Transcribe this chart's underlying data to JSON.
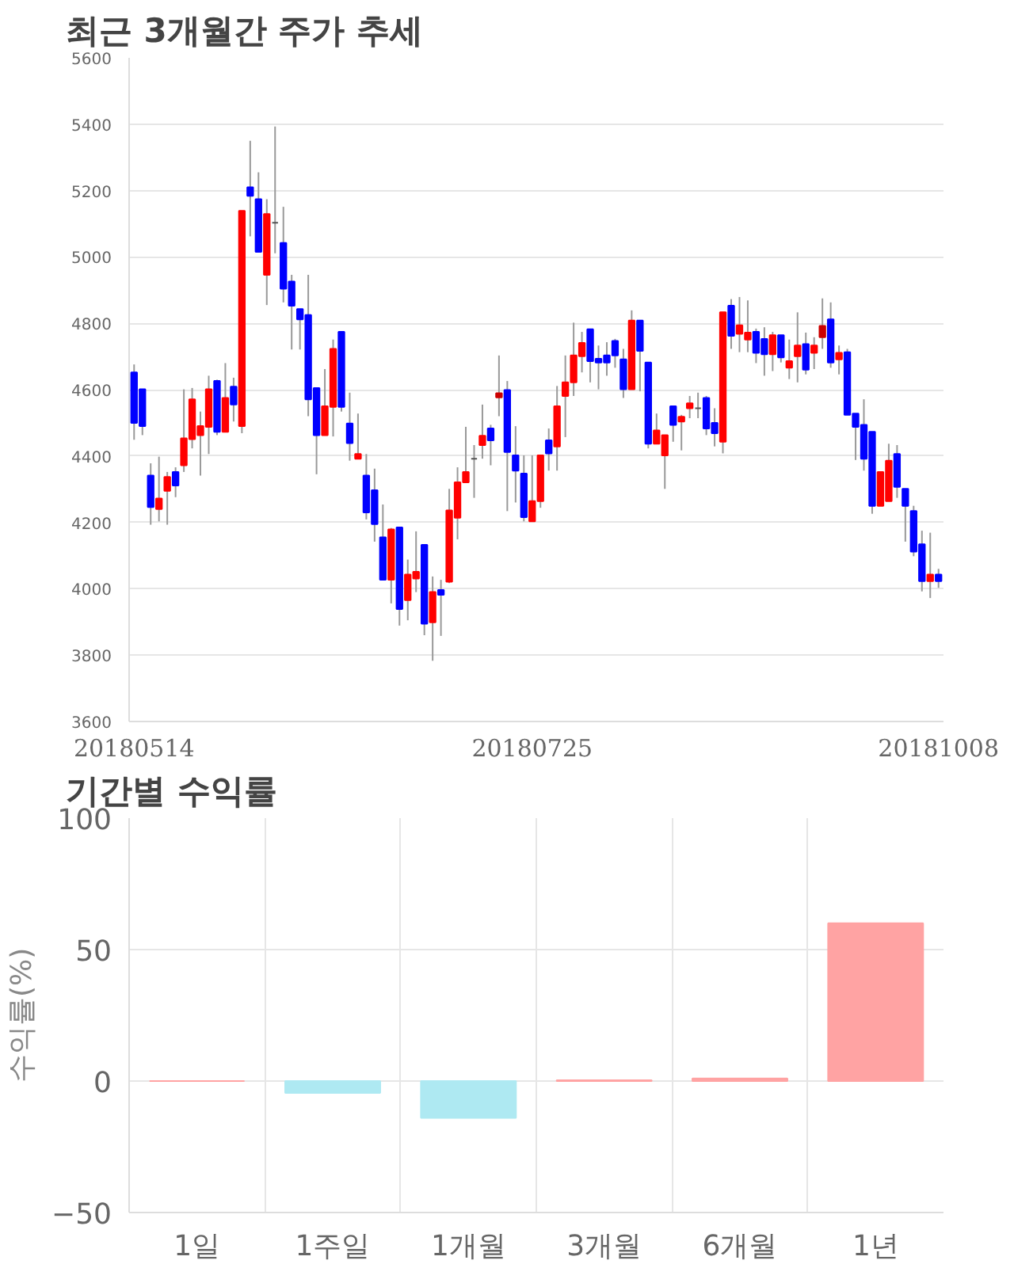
{
  "chart_data": [
    {
      "type": "candlestick",
      "title": "최근 3개월간 주가 추세",
      "categories": [
        "20180514",
        null,
        null,
        null,
        null,
        null,
        null,
        null,
        null,
        null,
        null,
        null,
        null,
        null,
        null,
        null,
        null,
        null,
        null,
        null,
        null,
        null,
        null,
        null,
        null,
        null,
        null,
        null,
        null,
        null,
        null,
        null,
        null,
        null,
        null,
        null,
        null,
        null,
        null,
        null,
        null,
        null,
        null,
        null,
        null,
        null,
        null,
        null,
        "20180725",
        null,
        null,
        null,
        null,
        null,
        null,
        null,
        null,
        null,
        null,
        null,
        null,
        null,
        null,
        null,
        null,
        null,
        null,
        null,
        null,
        null,
        null,
        null,
        null,
        null,
        null,
        null,
        null,
        null,
        null,
        null,
        null,
        null,
        null,
        null,
        null,
        null,
        null,
        null,
        null,
        null,
        null,
        null,
        null,
        null,
        null,
        null,
        null,
        "20181008"
      ],
      "ohlc": [
        [
          4652,
          4676,
          4449,
          4500
        ],
        [
          4601,
          4601,
          4463,
          4490
        ],
        [
          4341,
          4378,
          4193,
          4246
        ],
        [
          4240,
          4398,
          4203,
          4272
        ],
        [
          4295,
          4352,
          4193,
          4337
        ],
        [
          4352,
          4366,
          4276,
          4311
        ],
        [
          4372,
          4601,
          4352,
          4453
        ],
        [
          4451,
          4605,
          4423,
          4571
        ],
        [
          4463,
          4534,
          4341,
          4490
        ],
        [
          4488,
          4642,
          4406,
          4601
        ],
        [
          4626,
          4630,
          4463,
          4473
        ],
        [
          4473,
          4680,
          4473,
          4575
        ],
        [
          4609,
          4636,
          4504,
          4555
        ],
        [
          4490,
          5139,
          4469,
          5139
        ],
        [
          5210,
          5350,
          5062,
          5184
        ],
        [
          5174,
          5255,
          5015,
          5015
        ],
        [
          4946,
          5174,
          4855,
          5129
        ],
        [
          5103,
          5393,
          5011,
          5103
        ],
        [
          5042,
          5151,
          4863,
          4904
        ],
        [
          4926,
          4946,
          4721,
          4853
        ],
        [
          4843,
          4843,
          4721,
          4812
        ],
        [
          4825,
          4946,
          4520,
          4571
        ],
        [
          4605,
          4605,
          4345,
          4463
        ],
        [
          4463,
          4662,
          4463,
          4550
        ],
        [
          4548,
          4751,
          4459,
          4723
        ],
        [
          4774,
          4774,
          4534,
          4548
        ],
        [
          4498,
          4591,
          4386,
          4439
        ],
        [
          4392,
          4528,
          4392,
          4406
        ],
        [
          4341,
          4406,
          4209,
          4230
        ],
        [
          4297,
          4362,
          4142,
          4195
        ],
        [
          4155,
          4254,
          4027,
          4027
        ],
        [
          4027,
          4183,
          3956,
          4179
        ],
        [
          4185,
          4185,
          3889,
          3939
        ],
        [
          3966,
          4088,
          3905,
          4043
        ],
        [
          4031,
          4173,
          3990,
          4051
        ],
        [
          4132,
          4132,
          3860,
          3895
        ],
        [
          3899,
          4037,
          3783,
          3990
        ],
        [
          3996,
          4027,
          3858,
          3982
        ],
        [
          4021,
          4301,
          4017,
          4236
        ],
        [
          4214,
          4366,
          4149,
          4321
        ],
        [
          4321,
          4488,
          4321,
          4352
        ],
        [
          4392,
          4433,
          4274,
          4392
        ],
        [
          4433,
          4555,
          4392,
          4461
        ],
        [
          4483,
          4494,
          4372,
          4447
        ],
        [
          4577,
          4703,
          4520,
          4589
        ],
        [
          4599,
          4626,
          4234,
          4412
        ],
        [
          4402,
          4490,
          4260,
          4356
        ],
        [
          4347,
          4402,
          4203,
          4216
        ],
        [
          4203,
          4402,
          4203,
          4264
        ],
        [
          4264,
          4402,
          4244,
          4402
        ],
        [
          4447,
          4483,
          4356,
          4408
        ],
        [
          4429,
          4611,
          4356,
          4550
        ],
        [
          4581,
          4703,
          4457,
          4622
        ],
        [
          4622,
          4802,
          4581,
          4703
        ],
        [
          4701,
          4774,
          4652,
          4741
        ],
        [
          4782,
          4782,
          4622,
          4686
        ],
        [
          4693,
          4733,
          4601,
          4682
        ],
        [
          4703,
          4743,
          4642,
          4682
        ],
        [
          4747,
          4753,
          4666,
          4703
        ],
        [
          4691,
          4723,
          4575,
          4601
        ],
        [
          4601,
          4839,
          4601,
          4808
        ],
        [
          4808,
          4808,
          4595,
          4717
        ],
        [
          4682,
          4682,
          4423,
          4437
        ],
        [
          4437,
          4528,
          4437,
          4477
        ],
        [
          4402,
          4463,
          4301,
          4463
        ],
        [
          4550,
          4550,
          4443,
          4494
        ],
        [
          4504,
          4524,
          4417,
          4518
        ],
        [
          4544,
          4581,
          4514,
          4559
        ],
        [
          4544,
          4591,
          4514,
          4544
        ],
        [
          4575,
          4581,
          4463,
          4483
        ],
        [
          4500,
          4544,
          4429,
          4469
        ],
        [
          4443,
          4833,
          4408,
          4833
        ],
        [
          4853,
          4873,
          4723,
          4762
        ],
        [
          4768,
          4879,
          4713,
          4794
        ],
        [
          4751,
          4869,
          4713,
          4772
        ],
        [
          4774,
          4784,
          4680,
          4711
        ],
        [
          4753,
          4788,
          4642,
          4707
        ],
        [
          4707,
          4774,
          4656,
          4764
        ],
        [
          4764,
          4764,
          4682,
          4697
        ],
        [
          4666,
          4751,
          4632,
          4686
        ],
        [
          4701,
          4833,
          4622,
          4733
        ],
        [
          4737,
          4772,
          4646,
          4660
        ],
        [
          4711,
          4758,
          4662,
          4733
        ],
        [
          4758,
          4875,
          4723,
          4792
        ],
        [
          4812,
          4863,
          4666,
          4682
        ],
        [
          4691,
          4733,
          4646,
          4711
        ],
        [
          4713,
          4723,
          4524,
          4524
        ],
        [
          4528,
          4528,
          4388,
          4488
        ],
        [
          4494,
          4571,
          4356,
          4392
        ],
        [
          4473,
          4473,
          4226,
          4250
        ],
        [
          4250,
          4352,
          4250,
          4352
        ],
        [
          4264,
          4437,
          4264,
          4386
        ],
        [
          4406,
          4433,
          4274,
          4307
        ],
        [
          4301,
          4301,
          4142,
          4250
        ],
        [
          4234,
          4250,
          4098,
          4112
        ],
        [
          4134,
          4175,
          3992,
          4023
        ],
        [
          4023,
          4169,
          3972,
          4043
        ],
        [
          4043,
          4060,
          4003,
          4023
        ]
      ],
      "colors": [
        "#0000ff",
        "#0000ff",
        "#0000ff",
        "#ff0000",
        "#ff0000",
        "#0000ff",
        "#ff0000",
        "#ff0000",
        "#ff0000",
        "#ff0000",
        "#0000ff",
        "#ff0000",
        "#0000ff",
        "#ff0000",
        "#0000ff",
        "#0000ff",
        "#ff0000",
        "#555555",
        "#0000ff",
        "#0000ff",
        "#0000ff",
        "#0000ff",
        "#0000ff",
        "#ff0000",
        "#ff0000",
        "#0000ff",
        "#0000ff",
        "#ff0000",
        "#0000ff",
        "#0000ff",
        "#0000ff",
        "#ff0000",
        "#0000ff",
        "#ff0000",
        "#ff0000",
        "#0000ff",
        "#ff0000",
        "#0000ff",
        "#ff0000",
        "#ff0000",
        "#ff0000",
        "#555555",
        "#ff0000",
        "#0000ff",
        "#cc0000",
        "#0000ff",
        "#0000ff",
        "#0000ff",
        "#ff0000",
        "#ff0000",
        "#0000ff",
        "#ff0000",
        "#ff0000",
        "#ff0000",
        "#ff0000",
        "#0000ff",
        "#0000ff",
        "#0000ff",
        "#0000ff",
        "#0000ff",
        "#ff0000",
        "#0000ff",
        "#0000ff",
        "#ff0000",
        "#ff0000",
        "#0000ff",
        "#ff0000",
        "#ff0000",
        "#555555",
        "#0000ff",
        "#0000ff",
        "#ff0000",
        "#0000ff",
        "#ff0000",
        "#ff0000",
        "#0000ff",
        "#0000ff",
        "#ff0000",
        "#0000ff",
        "#ff0000",
        "#ff0000",
        "#0000ff",
        "#ff0000",
        "#cc0000",
        "#0000ff",
        "#ff0000",
        "#0000ff",
        "#0000ff",
        "#0000ff",
        "#0000ff",
        "#ff0000",
        "#ff0000",
        "#0000ff",
        "#0000ff",
        "#0000ff",
        "#0000ff",
        "#ff0000",
        "#0000ff"
      ],
      "ylim": [
        3600,
        5600
      ],
      "yticks": [
        3600,
        3800,
        4000,
        4200,
        4400,
        4600,
        4800,
        5000,
        5200,
        5400,
        5600
      ],
      "grid": "y"
    },
    {
      "type": "bar",
      "title": "기간별 수익률",
      "ylabel": "수익률(%)",
      "categories": [
        "1일",
        "1주일",
        "1개월",
        "3개월",
        "6개월",
        "1년"
      ],
      "values": [
        0,
        -4.5,
        -14,
        0.3,
        1,
        60
      ],
      "colors": [
        "#ffa3a3",
        "#aee9f2",
        "#aee9f2",
        "#ffa3a3",
        "#ffa3a3",
        "#ffa3a3"
      ],
      "ylim": [
        -50,
        100
      ],
      "yticks": [
        -50,
        0,
        50,
        100
      ],
      "grid": true
    }
  ]
}
